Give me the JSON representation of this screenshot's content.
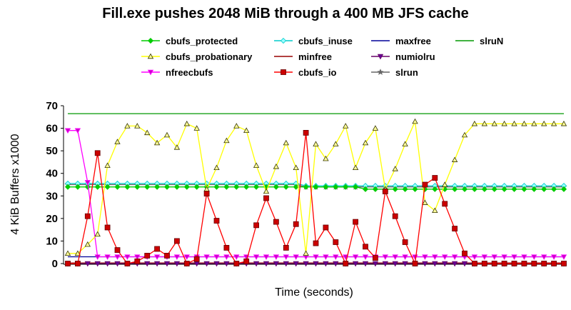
{
  "chart_data": {
    "type": "line",
    "title": "Fill.exe pushes 2048 MiB through a 400 MB JFS cache",
    "xlabel": "Time (seconds)",
    "ylabel": "4 KiB Buffers x1000",
    "ylim": [
      0,
      70
    ],
    "yticks": [
      "0",
      "10",
      "20",
      "30",
      "40",
      "50",
      "60",
      "70"
    ],
    "x_points": 51,
    "legend_position": "top",
    "series": [
      {
        "name": "cbufs_protected",
        "color": "#00cc00",
        "marker": "diamond",
        "marker_fill": "#00cc00",
        "values": [
          34,
          34,
          34,
          34,
          34,
          34,
          34,
          34,
          34,
          34,
          34,
          34,
          34,
          34,
          34,
          34,
          34,
          34,
          34,
          34,
          34,
          34,
          34,
          34,
          34,
          34,
          34,
          34,
          34,
          34,
          33,
          33,
          33,
          33,
          33,
          33,
          33,
          33,
          33,
          33,
          33,
          33,
          33,
          33,
          33,
          33,
          33,
          33,
          33,
          33,
          33
        ]
      },
      {
        "name": "cbufs_probationary",
        "color": "#ffff00",
        "marker": "triangle",
        "marker_fill": "#ffff99",
        "values": [
          4.5,
          4.5,
          8.5,
          13,
          43.5,
          54,
          61,
          61,
          58,
          53.5,
          57,
          51.5,
          62,
          60,
          33,
          42.5,
          54.5,
          61,
          59,
          43.5,
          32,
          43,
          53.5,
          42.5,
          4.5,
          53,
          46.5,
          53,
          61,
          42.5,
          53.5,
          60,
          33,
          42,
          53,
          63,
          27,
          23.5,
          35,
          46,
          57,
          62,
          62,
          62,
          62,
          62,
          62,
          62,
          62,
          62,
          62
        ]
      },
      {
        "name": "nfreecbufs",
        "color": "#ff00ff",
        "marker": "triangle-down",
        "marker_fill": "#cc00cc",
        "values": [
          59,
          59,
          36,
          3,
          3,
          3,
          3,
          3,
          3,
          3,
          3,
          3,
          3,
          3,
          3,
          3,
          3,
          3,
          3,
          3,
          3,
          3,
          3,
          3,
          3,
          3,
          3,
          3,
          3,
          3,
          3,
          3,
          3,
          3,
          3,
          3,
          3,
          3,
          3,
          3,
          3,
          3,
          3,
          3,
          3,
          3,
          3,
          3,
          3,
          3,
          3
        ]
      },
      {
        "name": "cbufs_inuse",
        "color": "#00cccc",
        "marker": "diamond",
        "marker_fill": "#99ffff",
        "values": [
          35.5,
          35.5,
          35.5,
          35.5,
          35.5,
          35.5,
          35.5,
          35.5,
          35.5,
          35.5,
          35.5,
          35.5,
          35.5,
          35.5,
          35.5,
          35.5,
          35.5,
          35.5,
          35.5,
          35.5,
          35.5,
          35.5,
          35.5,
          35.5,
          34.5,
          34.5,
          34.5,
          34.5,
          34.5,
          34.5,
          34.5,
          34.5,
          34.5,
          34.5,
          34.5,
          34.5,
          34.5,
          34.5,
          34.5,
          34.5,
          34.5,
          34.5,
          34.5,
          34.5,
          34.5,
          34.5,
          34.5,
          34.5,
          34.5,
          34.5,
          34.5
        ]
      },
      {
        "name": "minfree",
        "color": "#990000",
        "marker": "none",
        "marker_fill": "",
        "values": [
          0.3,
          0.3,
          0.3,
          0.3,
          0.3,
          0.3,
          0.3,
          0.3,
          0.3,
          0.3,
          0.3,
          0.3,
          0.3,
          0.3,
          0.3,
          0.3,
          0.3,
          0.3,
          0.3,
          0.3,
          0.3,
          0.3,
          0.3,
          0.3,
          0.3,
          0.3,
          0.3,
          0.3,
          0.3,
          0.3,
          0.3,
          0.3,
          0.3,
          0.3,
          0.3,
          0.3,
          0.3,
          0.3,
          0.3,
          0.3,
          0.3,
          0.3,
          0.3,
          0.3,
          0.3,
          0.3,
          0.3,
          0.3,
          0.3,
          0.3,
          0.3
        ]
      },
      {
        "name": "cbufs_io",
        "color": "#ff0000",
        "marker": "square",
        "marker_fill": "#cc0000",
        "values": [
          0,
          0,
          21,
          49,
          16,
          6,
          0,
          1,
          3.5,
          6.5,
          3.5,
          10,
          0,
          2,
          31,
          19,
          7,
          0,
          1,
          17,
          29,
          18.5,
          7,
          17.5,
          58,
          9,
          16,
          9.5,
          0,
          18.5,
          7.5,
          2.5,
          32,
          21,
          9.5,
          0,
          35,
          38,
          26.5,
          15.5,
          4.5,
          0,
          0,
          0,
          0,
          0,
          0,
          0,
          0,
          0,
          0
        ]
      },
      {
        "name": "maxfree",
        "color": "#000099",
        "marker": "none",
        "marker_fill": "",
        "values": [
          3,
          3,
          3,
          3,
          3,
          3,
          3,
          3,
          3,
          3,
          3,
          3,
          3,
          3,
          3,
          3,
          3,
          3,
          3,
          3,
          3,
          3,
          3,
          3,
          3,
          3,
          3,
          3,
          3,
          3,
          3,
          3,
          3,
          3,
          3,
          3,
          3,
          3,
          3,
          3,
          3,
          3,
          3,
          3,
          3,
          3,
          3,
          3,
          3,
          3,
          3
        ]
      },
      {
        "name": "numiolru",
        "color": "#660066",
        "marker": "triangle-down",
        "marker_fill": "#660099",
        "values": [
          0,
          0,
          0,
          0,
          0,
          0,
          0,
          0,
          0,
          0,
          0,
          0,
          0,
          0,
          0,
          0,
          0,
          0,
          0,
          0,
          0,
          0,
          0,
          0,
          0,
          0,
          0,
          0,
          0,
          0,
          0,
          0,
          0,
          0,
          0,
          0,
          0,
          0,
          0,
          0,
          0,
          0,
          0,
          0,
          0,
          0,
          0,
          0,
          0,
          0,
          0
        ]
      },
      {
        "name": "slrun",
        "color": "#666666",
        "marker": "star",
        "marker_fill": "#666666",
        "values": [
          35,
          35,
          35,
          35,
          35,
          35,
          35,
          35,
          35,
          35,
          35,
          35,
          35,
          35,
          35,
          35,
          35,
          35,
          35,
          35,
          35,
          35,
          35,
          35,
          34,
          34,
          34,
          34,
          34,
          34,
          34,
          34,
          34,
          34,
          34,
          34,
          34,
          34,
          34,
          34,
          34,
          34,
          34,
          34,
          34,
          34,
          34,
          34,
          34,
          34,
          34
        ]
      },
      {
        "name": "slruN",
        "color": "#009900",
        "marker": "none",
        "marker_fill": "",
        "values": [
          66.5,
          66.5,
          66.5,
          66.5,
          66.5,
          66.5,
          66.5,
          66.5,
          66.5,
          66.5,
          66.5,
          66.5,
          66.5,
          66.5,
          66.5,
          66.5,
          66.5,
          66.5,
          66.5,
          66.5,
          66.5,
          66.5,
          66.5,
          66.5,
          66.5,
          66.5,
          66.5,
          66.5,
          66.5,
          66.5,
          66.5,
          66.5,
          66.5,
          66.5,
          66.5,
          66.5,
          66.5,
          66.5,
          66.5,
          66.5,
          66.5,
          66.5,
          66.5,
          66.5,
          66.5,
          66.5,
          66.5,
          66.5,
          66.5,
          66.5,
          66.5
        ]
      }
    ]
  }
}
